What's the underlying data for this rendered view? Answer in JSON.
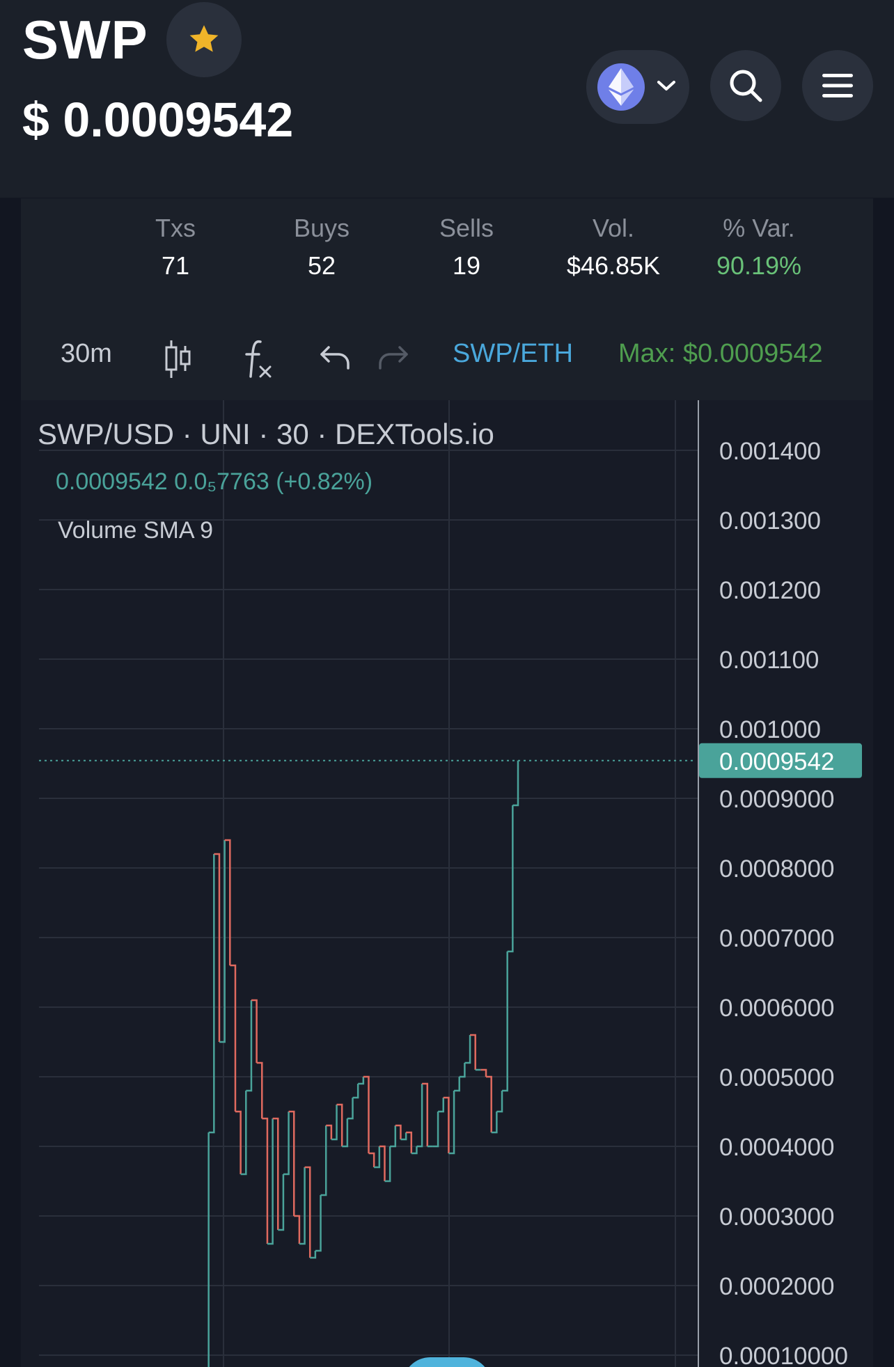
{
  "header": {
    "symbol": "SWP",
    "price": "$ 0.0009542"
  },
  "icons": {
    "favorite": "star-icon",
    "chain": "ethereum-icon",
    "chain_dropdown": "chevron-down-icon",
    "search": "search-icon",
    "menu": "hamburger-menu-icon"
  },
  "stats": [
    {
      "label": "Txs",
      "value": "71"
    },
    {
      "label": "Buys",
      "value": "52"
    },
    {
      "label": "Sells",
      "value": "19"
    },
    {
      "label": "Vol.",
      "value": "$46.85K"
    },
    {
      "label": "% Var.",
      "value": "90.19%"
    }
  ],
  "toolbar": {
    "interval": "30m",
    "pair": "SWP/ETH",
    "max": "Max: $0.0009542"
  },
  "legend": {
    "title": "SWP/USD · UNI · 30 · DEXTools.io",
    "values": "0.0009542  0.0₅7763 (+0.82%)",
    "volume": "Volume SMA 9"
  },
  "colors": {
    "up": "#4aa39a",
    "down": "#e06a5f",
    "positive_text": "#69c178",
    "pair_link": "#4aa8dc",
    "max_text": "#4f9e4f",
    "star": "#f0b429"
  },
  "chart_data": {
    "type": "line",
    "title": "SWP/USD · UNI · 30 · DEXTools.io",
    "ylabel": "",
    "xlabel": "",
    "ylim": [
      9e-05,
      0.00144
    ],
    "yticks": [
      "0.001400",
      "0.001300",
      "0.001200",
      "0.001100",
      "0.001000",
      "0.0009000",
      "0.0008000",
      "0.0007000",
      "0.0006000",
      "0.0005000",
      "0.0004000",
      "0.0003000",
      "0.0002000",
      "0.00010000"
    ],
    "ytick_values": [
      0.0014,
      0.0013,
      0.0012,
      0.0011,
      0.001,
      0.0009,
      0.0008,
      0.0007,
      0.0006,
      0.0005,
      0.0004,
      0.0003,
      0.0002,
      0.0001
    ],
    "current_price": 0.0009542,
    "current_price_label": "0.0009542",
    "grid": true,
    "series": [
      {
        "values": [
          8e-05,
          0.00042,
          0.00082,
          0.00055,
          0.00084,
          0.00066,
          0.00045,
          0.00036,
          0.00048,
          0.00061,
          0.00052,
          0.00044,
          0.00026,
          0.00044,
          0.00028,
          0.00036,
          0.00045,
          0.0003,
          0.00026,
          0.00037,
          0.00024,
          0.00025,
          0.00033,
          0.00043,
          0.00041,
          0.00046,
          0.0004,
          0.00044,
          0.00047,
          0.00049,
          0.0005,
          0.00039,
          0.00037,
          0.0004,
          0.00035,
          0.0004,
          0.00043,
          0.00041,
          0.00042,
          0.00039,
          0.0004,
          0.00049,
          0.0004,
          0.0004,
          0.00045,
          0.00047,
          0.00039,
          0.00048,
          0.0005,
          0.00052,
          0.00056,
          0.00051,
          0.00051,
          0.0005,
          0.00042,
          0.00045,
          0.00048,
          0.00068,
          0.00089,
          0.0009542
        ]
      }
    ]
  }
}
